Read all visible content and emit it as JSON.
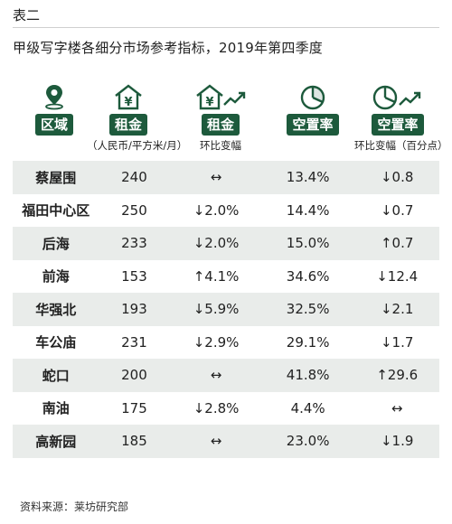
{
  "label": "表二",
  "subtitle": "甲级写字楼各细分市场参考指标，2019年第四季度",
  "header": {
    "district": {
      "label": "区域",
      "sub": ""
    },
    "rent": {
      "label": "租金",
      "sub": "（人民币/平方米/月）"
    },
    "rent_change": {
      "label": "租金",
      "sub": "环比变幅"
    },
    "vacancy": {
      "label": "空置率",
      "sub": ""
    },
    "vacancy_change": {
      "label": "空置率",
      "sub": "环比变幅（百分点）"
    }
  },
  "rows": [
    {
      "district": "蔡屋围",
      "rent": "240",
      "rent_change": "↔",
      "vacancy": "13.4%",
      "vacancy_change": "↓0.8"
    },
    {
      "district": "福田中心区",
      "rent": "250",
      "rent_change": "↓2.0%",
      "vacancy": "14.4%",
      "vacancy_change": "↓0.7"
    },
    {
      "district": "后海",
      "rent": "233",
      "rent_change": "↓2.0%",
      "vacancy": "15.0%",
      "vacancy_change": "↑0.7"
    },
    {
      "district": "前海",
      "rent": "153",
      "rent_change": "↑4.1%",
      "vacancy": "34.6%",
      "vacancy_change": "↓12.4"
    },
    {
      "district": "华强北",
      "rent": "193",
      "rent_change": "↓5.9%",
      "vacancy": "32.5%",
      "vacancy_change": "↓2.1"
    },
    {
      "district": "车公庙",
      "rent": "231",
      "rent_change": "↓2.9%",
      "vacancy": "29.1%",
      "vacancy_change": "↓1.7"
    },
    {
      "district": "蛇口",
      "rent": "200",
      "rent_change": "↔",
      "vacancy": "41.8%",
      "vacancy_change": "↑29.6"
    },
    {
      "district": "南油",
      "rent": "175",
      "rent_change": "↓2.8%",
      "vacancy": "4.4%",
      "vacancy_change": "↔"
    },
    {
      "district": "高新园",
      "rent": "185",
      "rent_change": "↔",
      "vacancy": "23.0%",
      "vacancy_change": "↓1.9"
    }
  ],
  "source": "资料来源：莱坊研究部",
  "colors": {
    "accent": "#1d5a3c",
    "row_shade": "#e9ecea"
  },
  "icons": [
    "location-pin-icon",
    "house-yuan-icon",
    "house-yuan-trend-icon",
    "pie-chart-icon",
    "pie-chart-trend-icon"
  ]
}
